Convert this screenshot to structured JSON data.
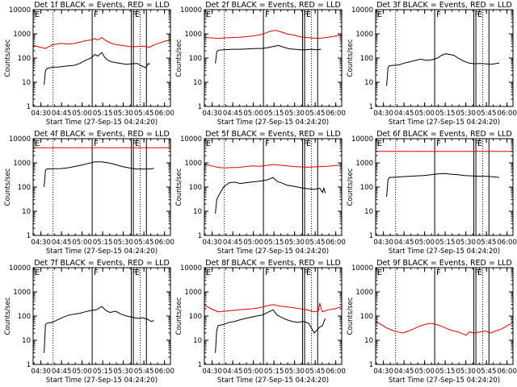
{
  "page": {
    "background": "#ffffff"
  },
  "style": {
    "axis_color": "#000000",
    "events_color": "#000000",
    "lld_color": "#e00000"
  },
  "x_axis": {
    "start": "04:24:20",
    "range_minutes": [
      0,
      100
    ],
    "tick_labels": [
      "04:30",
      "04:45",
      "05:00",
      "05:15",
      "05:30",
      "05:45",
      "06:00"
    ],
    "tick_minutes": [
      5.67,
      20.67,
      35.67,
      50.67,
      65.67,
      80.67,
      95.67
    ],
    "xlabel": "Start Time (27-Sep-15 04:24:20)"
  },
  "y_axis": {
    "scale": "log",
    "range": [
      1,
      10000
    ],
    "tick_labels": [
      "1",
      "10",
      "100",
      "1000",
      "10000"
    ],
    "tick_values": [
      1,
      10,
      100,
      1000,
      10000
    ],
    "ylabel": "Counts/sec"
  },
  "markers": {
    "dotted_minutes": [
      14.5,
      78.0
    ],
    "solid_minutes": [
      43.0,
      71.5,
      73.0,
      82.5
    ],
    "labels": [
      {
        "text": "E",
        "minute": 0.5
      },
      {
        "text": "F",
        "minute": 43.5
      },
      {
        "text": "F",
        "minute": 71.5
      },
      {
        "text": "E",
        "minute": 73.5
      }
    ]
  },
  "chart_data": [
    {
      "type": "line",
      "title": "Det 1f BLACK = Events, RED = LLD",
      "x_unit": "minutes since 04:24:20",
      "series": [
        {
          "color": "#000000",
          "x": [
            8,
            9,
            10,
            11,
            14,
            18,
            22,
            26,
            30,
            34,
            38,
            42,
            45,
            47,
            50,
            52,
            54,
            57,
            60,
            64,
            68,
            72,
            76,
            78,
            82,
            84,
            85
          ],
          "y": [
            8,
            30,
            37,
            38,
            42,
            42,
            45,
            48,
            50,
            60,
            80,
            100,
            140,
            120,
            170,
            110,
            85,
            70,
            65,
            60,
            55,
            58,
            60,
            50,
            40,
            60,
            55
          ]
        },
        {
          "color": "#e00000",
          "x": [
            0,
            5,
            9,
            14,
            20,
            26,
            30,
            34,
            38,
            42,
            45,
            47,
            50,
            53,
            56,
            60,
            65,
            70,
            75,
            80,
            85,
            88,
            92,
            96,
            100
          ],
          "y": [
            340,
            280,
            250,
            350,
            400,
            380,
            400,
            450,
            520,
            560,
            640,
            560,
            700,
            520,
            430,
            360,
            330,
            300,
            300,
            310,
            280,
            350,
            420,
            500,
            560
          ]
        }
      ]
    },
    {
      "type": "line",
      "title": "Det 2f BLACK = Events, RED = LLD",
      "x_unit": "minutes since 04:24:20",
      "series": [
        {
          "color": "#000000",
          "x": [
            8,
            9,
            10,
            14,
            20,
            26,
            32,
            38,
            42,
            46,
            50,
            54,
            58,
            62,
            66,
            70,
            74,
            78,
            82,
            85
          ],
          "y": [
            60,
            180,
            210,
            220,
            230,
            230,
            240,
            250,
            250,
            270,
            300,
            330,
            280,
            240,
            230,
            220,
            220,
            230,
            220,
            230
          ]
        },
        {
          "color": "#e00000",
          "x": [
            0,
            5,
            10,
            15,
            20,
            25,
            30,
            35,
            40,
            44,
            48,
            52,
            56,
            60,
            65,
            70,
            75,
            80,
            85,
            90,
            95,
            100
          ],
          "y": [
            700,
            680,
            650,
            680,
            700,
            720,
            760,
            820,
            900,
            1050,
            1300,
            1400,
            1200,
            1000,
            900,
            760,
            700,
            660,
            660,
            720,
            800,
            900
          ]
        }
      ]
    },
    {
      "type": "line",
      "title": "Det 3f BLACK = Events, RED = LLD",
      "x_unit": "minutes since 04:24:20",
      "series": [
        {
          "color": "#000000",
          "x": [
            8,
            9,
            10,
            13,
            17,
            21,
            25,
            29,
            33,
            37,
            41,
            45,
            48,
            51,
            54,
            57,
            60,
            64,
            68,
            72,
            76,
            80,
            84,
            88,
            90
          ],
          "y": [
            7,
            40,
            48,
            50,
            52,
            62,
            70,
            80,
            90,
            80,
            85,
            100,
            130,
            150,
            140,
            130,
            100,
            75,
            62,
            58,
            60,
            58,
            55,
            60,
            62
          ]
        }
      ]
    },
    {
      "type": "line",
      "title": "Det 4f BLACK = Events, RED = LLD",
      "x_unit": "minutes since 04:24:20",
      "series": [
        {
          "color": "#000000",
          "x": [
            8,
            9,
            10,
            15,
            20,
            25,
            30,
            35,
            40,
            45,
            50,
            55,
            60,
            65,
            70,
            75,
            80,
            85,
            88
          ],
          "y": [
            100,
            500,
            560,
            570,
            580,
            620,
            700,
            800,
            950,
            1100,
            1100,
            1000,
            850,
            700,
            620,
            560,
            560,
            560,
            600
          ]
        },
        {
          "color": "#e00000",
          "x": [
            0,
            100
          ],
          "y": [
            4200,
            4200
          ]
        }
      ]
    },
    {
      "type": "line",
      "title": "Det 5f BLACK = Events, RED = LLD",
      "x_unit": "minutes since 04:24:20",
      "series": [
        {
          "color": "#000000",
          "x": [
            8,
            9,
            10,
            14,
            18,
            22,
            26,
            30,
            34,
            38,
            42,
            46,
            50,
            53,
            56,
            60,
            64,
            68,
            72,
            76,
            80,
            84,
            86,
            87,
            88
          ],
          "y": [
            8,
            30,
            40,
            100,
            150,
            160,
            140,
            150,
            160,
            170,
            180,
            200,
            250,
            170,
            150,
            120,
            110,
            100,
            90,
            85,
            80,
            90,
            60,
            90,
            55
          ]
        },
        {
          "color": "#e00000",
          "x": [
            0,
            5,
            10,
            15,
            20,
            25,
            30,
            35,
            40,
            45,
            50,
            55,
            60,
            65,
            70,
            75,
            80,
            85,
            90,
            95,
            100
          ],
          "y": [
            900,
            750,
            650,
            620,
            640,
            650,
            700,
            750,
            720,
            780,
            850,
            800,
            760,
            700,
            680,
            660,
            680,
            700,
            720,
            780,
            800
          ]
        }
      ]
    },
    {
      "type": "line",
      "title": "Det 6f BLACK = Events, RED = LLD",
      "x_unit": "minutes since 04:24:20",
      "series": [
        {
          "color": "#000000",
          "x": [
            8,
            9,
            10,
            15,
            20,
            25,
            30,
            35,
            40,
            45,
            50,
            55,
            60,
            65,
            70,
            75,
            80,
            85,
            90
          ],
          "y": [
            40,
            200,
            250,
            260,
            270,
            280,
            290,
            300,
            320,
            350,
            360,
            340,
            320,
            300,
            290,
            280,
            280,
            270,
            250
          ]
        },
        {
          "color": "#e00000",
          "x": [
            0,
            100
          ],
          "y": [
            3000,
            3000
          ]
        }
      ]
    },
    {
      "type": "line",
      "title": "Det 7f BLACK = Events, RED = LLD",
      "x_unit": "minutes since 04:24:20",
      "series": [
        {
          "color": "#000000",
          "x": [
            8,
            9,
            10,
            14,
            18,
            22,
            26,
            30,
            34,
            38,
            42,
            46,
            50,
            53,
            56,
            60,
            64,
            68,
            72,
            76,
            80,
            84,
            86,
            88
          ],
          "y": [
            3,
            45,
            50,
            55,
            70,
            90,
            110,
            120,
            130,
            150,
            170,
            180,
            250,
            170,
            140,
            160,
            120,
            100,
            90,
            80,
            85,
            70,
            60,
            65
          ]
        }
      ]
    },
    {
      "type": "line",
      "title": "Det 8f BLACK = Events, RED = LLD",
      "x_unit": "minutes since 04:24:20",
      "series": [
        {
          "color": "#000000",
          "x": [
            8,
            9,
            10,
            14,
            18,
            22,
            26,
            30,
            34,
            38,
            42,
            46,
            50,
            53,
            56,
            60,
            64,
            68,
            72,
            76,
            80,
            84,
            86,
            88
          ],
          "y": [
            3,
            25,
            40,
            45,
            55,
            60,
            70,
            80,
            90,
            100,
            110,
            140,
            180,
            110,
            90,
            70,
            60,
            55,
            60,
            50,
            20,
            35,
            40,
            80
          ]
        },
        {
          "color": "#e00000",
          "x": [
            0,
            5,
            10,
            15,
            20,
            25,
            30,
            35,
            40,
            45,
            50,
            55,
            60,
            65,
            70,
            75,
            80,
            83,
            84,
            85,
            86,
            90,
            95,
            100
          ],
          "y": [
            280,
            200,
            150,
            160,
            170,
            180,
            190,
            200,
            220,
            260,
            300,
            260,
            240,
            220,
            200,
            180,
            150,
            160,
            350,
            200,
            150,
            180,
            200,
            250
          ]
        }
      ]
    },
    {
      "type": "line",
      "title": "Det 9f BLACK = Events, RED = LLD",
      "x_unit": "minutes since 04:24:20",
      "series": [
        {
          "color": "#e00000",
          "x": [
            0,
            4,
            8,
            12,
            16,
            20,
            24,
            28,
            32,
            36,
            40,
            44,
            48,
            52,
            56,
            60,
            64,
            66,
            68,
            72,
            76,
            80,
            84,
            88,
            92,
            96,
            100
          ],
          "y": [
            60,
            45,
            32,
            26,
            22,
            20,
            24,
            30,
            38,
            45,
            50,
            45,
            38,
            30,
            25,
            22,
            18,
            16,
            22,
            20,
            22,
            24,
            20,
            25,
            30,
            40,
            55
          ]
        }
      ]
    }
  ]
}
